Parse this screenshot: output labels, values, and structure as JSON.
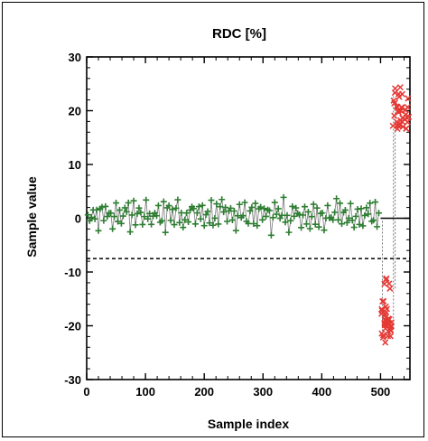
{
  "chart_data": {
    "type": "scatter",
    "title": "RDC [%]",
    "xlabel": "Sample index",
    "ylabel": "Sample value",
    "xlim": [
      0,
      550
    ],
    "ylim": [
      -30,
      30
    ],
    "xticks": [
      0,
      100,
      200,
      300,
      400,
      500
    ],
    "yticks": [
      -30,
      -20,
      -10,
      0,
      10,
      20,
      30
    ],
    "grid": false,
    "reference_lines": [
      {
        "style": "solid",
        "y": 0,
        "x_range": [
          500,
          550
        ]
      },
      {
        "style": "dashed",
        "y": -7.5,
        "x_range": [
          0,
          550
        ]
      }
    ],
    "series": [
      {
        "marker": "plus",
        "color": "#2e7d32",
        "x_range": [
          0,
          500
        ],
        "center": 0.5,
        "spread": 2.5,
        "x_step": 3,
        "values": [
          0.2,
          -1.4,
          0.8,
          2.1,
          -0.6,
          1.3,
          -2.2,
          0.4,
          1.7,
          -0.9,
          2.8,
          -1.1,
          0.1,
          1.9,
          -3.1,
          0.6,
          2.4,
          -0.3,
          1.1,
          -1.8,
          0.9,
          3.2,
          -0.5,
          1.5,
          -2.6,
          0.3,
          2.0,
          -1.2,
          0.7,
          1.6
        ]
      },
      {
        "marker": "x",
        "color": "#e53935",
        "segments": [
          {
            "x_range": [
              500,
              520
            ],
            "center": -19,
            "spread": 3,
            "values": [
              -20.5,
              -18.2,
              -21.8,
              -11.5,
              -19.4,
              -17.6,
              -22.4,
              -15.8,
              -20.1,
              -18.9,
              -12.6,
              -19.8,
              -21.0,
              -16.7,
              -19.1
            ]
          },
          {
            "x_range": [
              520,
              550
            ],
            "center": 19,
            "spread": 3,
            "values": [
              23.5,
              18.4,
              20.6,
              17.2,
              21.9,
              16.8,
              19.5,
              23.8,
              18.0,
              20.9,
              17.7,
              22.1,
              19.0,
              16.5,
              21.2,
              18.7,
              20.3,
              17.9
            ]
          }
        ]
      }
    ]
  }
}
